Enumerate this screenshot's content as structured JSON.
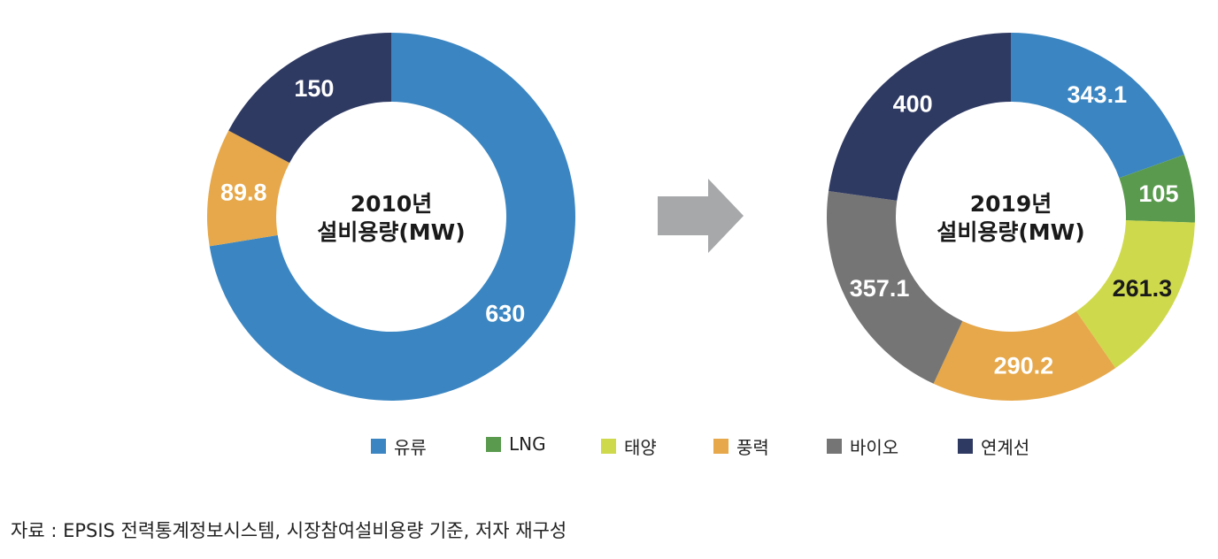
{
  "chart_data": [
    {
      "type": "pie",
      "center_title": "2010년",
      "center_subtitle": "설비용량(MW)",
      "slices": [
        {
          "category": "유류",
          "value": 630,
          "label": "630",
          "color": "#3b86c2",
          "label_color": "#ffffff"
        },
        {
          "category": "풍력",
          "value": 89.8,
          "label": "89.8",
          "color": "#e6a84a",
          "label_color": "#ffffff"
        },
        {
          "category": "연계선",
          "value": 150,
          "label": "150",
          "color": "#2f3a63",
          "label_color": "#ffffff"
        }
      ]
    },
    {
      "type": "pie",
      "center_title": "2019년",
      "center_subtitle": "설비용량(MW)",
      "slices": [
        {
          "category": "유류",
          "value": 343.1,
          "label": "343.1",
          "color": "#3b86c2",
          "label_color": "#ffffff"
        },
        {
          "category": "LNG",
          "value": 105,
          "label": "105",
          "color": "#5a9a4e",
          "label_color": "#ffffff"
        },
        {
          "category": "태양",
          "value": 261.3,
          "label": "261.3",
          "color": "#cfd94c",
          "label_color": "#1a1a1a"
        },
        {
          "category": "풍력",
          "value": 290.2,
          "label": "290.2",
          "color": "#e6a84a",
          "label_color": "#ffffff"
        },
        {
          "category": "바이오",
          "value": 357.1,
          "label": "357.1",
          "color": "#757575",
          "label_color": "#ffffff"
        },
        {
          "category": "연계선",
          "value": 400,
          "label": "400",
          "color": "#2f3a63",
          "label_color": "#ffffff"
        }
      ]
    }
  ],
  "legend": [
    {
      "label": "유류",
      "color": "#3b86c2"
    },
    {
      "label": "LNG",
      "color": "#5a9a4e"
    },
    {
      "label": "태양",
      "color": "#cfd94c"
    },
    {
      "label": "풍력",
      "color": "#e6a84a"
    },
    {
      "label": "바이오",
      "color": "#757575"
    },
    {
      "label": "연계선",
      "color": "#2f3a63"
    }
  ],
  "arrow_color": "#a6a8a9",
  "source": "자료 : EPSIS 전력통계정보시스템, 시장참여설비용량 기준, 저자 재구성"
}
